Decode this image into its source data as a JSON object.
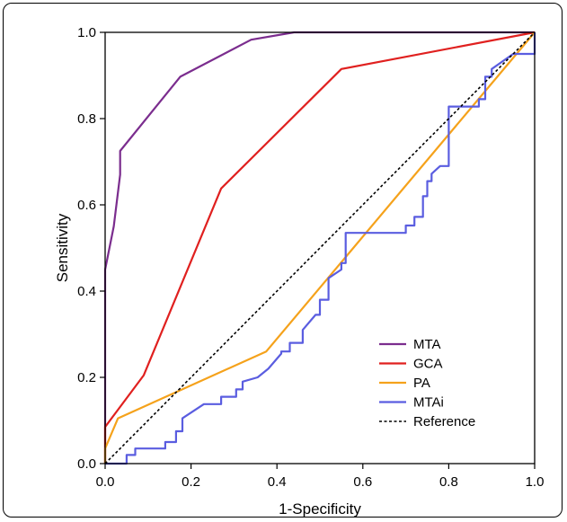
{
  "chart_data": {
    "type": "line",
    "title": "",
    "xlabel": "1-Specificity",
    "ylabel": "Sensitivity",
    "xlim": [
      0,
      1
    ],
    "ylim": [
      0,
      1
    ],
    "xticks": [
      "0.0",
      "0.2",
      "0.4",
      "0.6",
      "0.8",
      "1.0"
    ],
    "yticks": [
      "0.0",
      "0.2",
      "0.4",
      "0.6",
      "0.8",
      "1.0"
    ],
    "grid": false,
    "legend_position": "bottom-right",
    "series": [
      {
        "name": "MTA",
        "color": "#7b2d8e",
        "dash": "solid",
        "x": [
          0.0,
          0.0,
          0.02,
          0.035,
          0.035,
          0.175,
          0.34,
          0.44,
          1.0
        ],
        "y": [
          0.0,
          0.45,
          0.55,
          0.67,
          0.725,
          0.897,
          0.983,
          1.0,
          1.0
        ]
      },
      {
        "name": "GCA",
        "color": "#e0201f",
        "dash": "solid",
        "x": [
          0.0,
          0.0,
          0.09,
          0.27,
          0.55,
          1.0
        ],
        "y": [
          0.0,
          0.085,
          0.205,
          0.638,
          0.915,
          1.0
        ]
      },
      {
        "name": "PA",
        "color": "#f5a21b",
        "dash": "solid",
        "x": [
          0.0,
          0.0,
          0.03,
          0.375,
          1.0
        ],
        "y": [
          0.0,
          0.035,
          0.105,
          0.26,
          1.0
        ]
      },
      {
        "name": "MTAi",
        "color": "#5a5de0",
        "dash": "solid",
        "x": [
          0.0,
          0.05,
          0.05,
          0.07,
          0.07,
          0.14,
          0.14,
          0.165,
          0.165,
          0.18,
          0.18,
          0.23,
          0.23,
          0.27,
          0.27,
          0.305,
          0.305,
          0.32,
          0.32,
          0.355,
          0.38,
          0.41,
          0.41,
          0.43,
          0.43,
          0.46,
          0.46,
          0.49,
          0.49,
          0.5,
          0.5,
          0.52,
          0.52,
          0.55,
          0.55,
          0.56,
          0.56,
          0.7,
          0.7,
          0.72,
          0.72,
          0.74,
          0.74,
          0.75,
          0.75,
          0.76,
          0.76,
          0.78,
          0.78,
          0.8,
          0.8,
          0.87,
          0.87,
          0.885,
          0.885,
          0.9,
          0.9,
          0.95,
          0.95,
          0.96,
          0.96,
          0.99,
          0.99,
          1.0,
          1.0
        ],
        "y": [
          0.0,
          0.0,
          0.02,
          0.02,
          0.035,
          0.035,
          0.05,
          0.05,
          0.075,
          0.075,
          0.105,
          0.138,
          0.138,
          0.138,
          0.155,
          0.155,
          0.172,
          0.172,
          0.19,
          0.2,
          0.22,
          0.255,
          0.26,
          0.26,
          0.28,
          0.28,
          0.31,
          0.345,
          0.345,
          0.345,
          0.38,
          0.38,
          0.43,
          0.45,
          0.465,
          0.465,
          0.535,
          0.535,
          0.552,
          0.552,
          0.572,
          0.572,
          0.62,
          0.62,
          0.655,
          0.655,
          0.672,
          0.69,
          0.69,
          0.69,
          0.828,
          0.828,
          0.845,
          0.845,
          0.897,
          0.897,
          0.915,
          0.95,
          0.95,
          0.95,
          0.95,
          0.95,
          0.95,
          0.95,
          1.0
        ]
      },
      {
        "name": "Reference",
        "color": "#000000",
        "dash": "dotted",
        "x": [
          0.0,
          1.0
        ],
        "y": [
          0.0,
          1.0
        ]
      }
    ]
  }
}
